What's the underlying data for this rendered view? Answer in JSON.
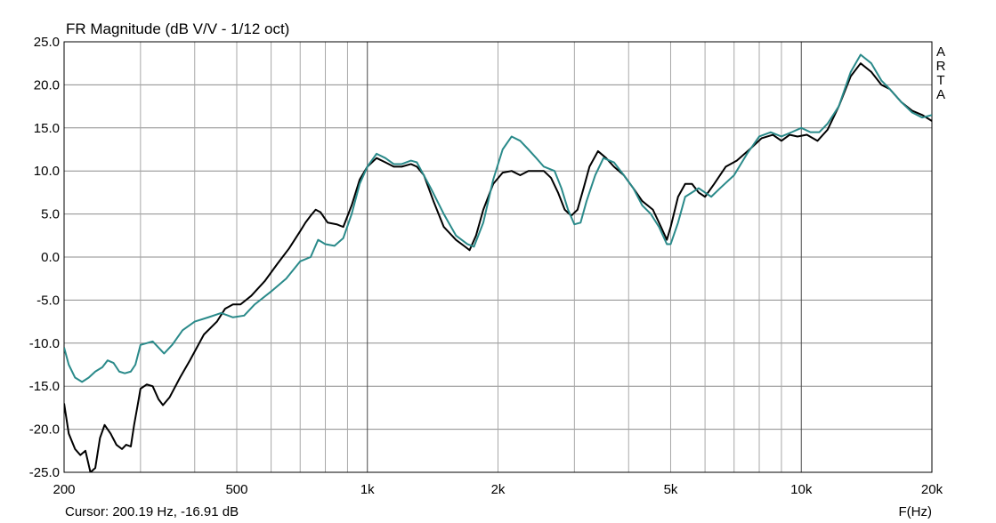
{
  "chart_data": {
    "type": "line",
    "title": "FR Magnitude (dB V/V - 1/12 oct)",
    "xlabel": "F(Hz)",
    "ylabel": "",
    "xscale": "log",
    "xlim": [
      200,
      20000
    ],
    "ylim": [
      -25,
      25
    ],
    "grid": true,
    "x_ticks": [
      {
        "value": 200,
        "label": "200"
      },
      {
        "value": 500,
        "label": "500"
      },
      {
        "value": 1000,
        "label": "1k"
      },
      {
        "value": 2000,
        "label": "2k"
      },
      {
        "value": 5000,
        "label": "5k"
      },
      {
        "value": 10000,
        "label": "10k"
      },
      {
        "value": 20000,
        "label": "20k"
      }
    ],
    "y_ticks": [
      "25.0",
      "20.0",
      "15.0",
      "10.0",
      "5.0",
      "0.0",
      "-5.0",
      "-10.0",
      "-15.0",
      "-20.0",
      "-25.0"
    ],
    "brand_letters": [
      "A",
      "R",
      "T",
      "A"
    ],
    "cursor_text": "Cursor: 200.19 Hz, -16.91 dB",
    "series": [
      {
        "color": "#000000",
        "points": [
          [
            200,
            -17
          ],
          [
            205,
            -20.5
          ],
          [
            212,
            -22.3
          ],
          [
            218,
            -23
          ],
          [
            224,
            -22.5
          ],
          [
            230,
            -25
          ],
          [
            236,
            -24.5
          ],
          [
            242,
            -21
          ],
          [
            248,
            -19.5
          ],
          [
            256,
            -20.5
          ],
          [
            264,
            -21.8
          ],
          [
            272,
            -22.3
          ],
          [
            278,
            -21.8
          ],
          [
            285,
            -22
          ],
          [
            290,
            -19.5
          ],
          [
            296,
            -17
          ],
          [
            300,
            -15.3
          ],
          [
            310,
            -14.8
          ],
          [
            320,
            -15
          ],
          [
            330,
            -16.5
          ],
          [
            338,
            -17.2
          ],
          [
            350,
            -16.3
          ],
          [
            370,
            -14
          ],
          [
            390,
            -12
          ],
          [
            420,
            -9
          ],
          [
            450,
            -7.5
          ],
          [
            470,
            -6
          ],
          [
            490,
            -5.5
          ],
          [
            510,
            -5.5
          ],
          [
            540,
            -4.5
          ],
          [
            580,
            -2.8
          ],
          [
            620,
            -0.8
          ],
          [
            660,
            1
          ],
          [
            700,
            3
          ],
          [
            720,
            4
          ],
          [
            740,
            4.8
          ],
          [
            760,
            5.5
          ],
          [
            780,
            5.2
          ],
          [
            810,
            4
          ],
          [
            850,
            3.8
          ],
          [
            880,
            3.5
          ],
          [
            920,
            6
          ],
          [
            960,
            9
          ],
          [
            1000,
            10.5
          ],
          [
            1050,
            11.5
          ],
          [
            1100,
            11
          ],
          [
            1150,
            10.5
          ],
          [
            1200,
            10.5
          ],
          [
            1260,
            10.8
          ],
          [
            1300,
            10.5
          ],
          [
            1350,
            9.5
          ],
          [
            1420,
            6.5
          ],
          [
            1500,
            3.5
          ],
          [
            1600,
            2
          ],
          [
            1680,
            1.2
          ],
          [
            1720,
            0.8
          ],
          [
            1780,
            2.5
          ],
          [
            1850,
            5.5
          ],
          [
            1950,
            8.5
          ],
          [
            2050,
            9.8
          ],
          [
            2150,
            10
          ],
          [
            2250,
            9.5
          ],
          [
            2350,
            10
          ],
          [
            2450,
            10
          ],
          [
            2550,
            10
          ],
          [
            2650,
            9.2
          ],
          [
            2750,
            7.5
          ],
          [
            2850,
            5.5
          ],
          [
            2950,
            4.8
          ],
          [
            3050,
            5.5
          ],
          [
            3150,
            8
          ],
          [
            3250,
            10.5
          ],
          [
            3400,
            12.3
          ],
          [
            3550,
            11.5
          ],
          [
            3700,
            10.5
          ],
          [
            3900,
            9.5
          ],
          [
            4100,
            8
          ],
          [
            4300,
            6.5
          ],
          [
            4550,
            5.5
          ],
          [
            4750,
            3.5
          ],
          [
            4900,
            2
          ],
          [
            5000,
            3.5
          ],
          [
            5200,
            7
          ],
          [
            5400,
            8.5
          ],
          [
            5600,
            8.5
          ],
          [
            5800,
            7.5
          ],
          [
            6000,
            7
          ],
          [
            6300,
            8.5
          ],
          [
            6700,
            10.5
          ],
          [
            7100,
            11.2
          ],
          [
            7600,
            12.5
          ],
          [
            8100,
            13.8
          ],
          [
            8600,
            14.2
          ],
          [
            9000,
            13.5
          ],
          [
            9400,
            14.2
          ],
          [
            9800,
            14
          ],
          [
            10300,
            14.2
          ],
          [
            10900,
            13.5
          ],
          [
            11500,
            14.8
          ],
          [
            12200,
            17.5
          ],
          [
            13000,
            21
          ],
          [
            13700,
            22.5
          ],
          [
            14500,
            21.5
          ],
          [
            15300,
            20
          ],
          [
            16000,
            19.5
          ],
          [
            17000,
            18
          ],
          [
            18000,
            17
          ],
          [
            19000,
            16.5
          ],
          [
            20000,
            15.8
          ]
        ]
      },
      {
        "color": "#2a8a8a",
        "points": [
          [
            200,
            -10.5
          ],
          [
            205,
            -12.5
          ],
          [
            212,
            -14
          ],
          [
            220,
            -14.5
          ],
          [
            228,
            -14
          ],
          [
            236,
            -13.3
          ],
          [
            245,
            -12.8
          ],
          [
            252,
            -12
          ],
          [
            260,
            -12.3
          ],
          [
            268,
            -13.3
          ],
          [
            276,
            -13.5
          ],
          [
            285,
            -13.3
          ],
          [
            292,
            -12.5
          ],
          [
            300,
            -10.2
          ],
          [
            310,
            -10
          ],
          [
            320,
            -9.8
          ],
          [
            330,
            -10.5
          ],
          [
            340,
            -11.2
          ],
          [
            355,
            -10.2
          ],
          [
            375,
            -8.5
          ],
          [
            400,
            -7.5
          ],
          [
            430,
            -7
          ],
          [
            460,
            -6.5
          ],
          [
            490,
            -7
          ],
          [
            520,
            -6.8
          ],
          [
            550,
            -5.5
          ],
          [
            600,
            -4
          ],
          [
            650,
            -2.5
          ],
          [
            700,
            -0.5
          ],
          [
            740,
            0
          ],
          [
            770,
            2
          ],
          [
            800,
            1.5
          ],
          [
            840,
            1.3
          ],
          [
            880,
            2.2
          ],
          [
            920,
            5
          ],
          [
            960,
            8.5
          ],
          [
            1000,
            10.5
          ],
          [
            1050,
            12
          ],
          [
            1100,
            11.5
          ],
          [
            1150,
            10.8
          ],
          [
            1200,
            10.8
          ],
          [
            1260,
            11.2
          ],
          [
            1300,
            11
          ],
          [
            1400,
            8
          ],
          [
            1500,
            5
          ],
          [
            1600,
            2.5
          ],
          [
            1700,
            1.5
          ],
          [
            1760,
            1.2
          ],
          [
            1850,
            4
          ],
          [
            1950,
            9
          ],
          [
            2050,
            12.5
          ],
          [
            2150,
            14
          ],
          [
            2250,
            13.5
          ],
          [
            2350,
            12.5
          ],
          [
            2450,
            11.5
          ],
          [
            2550,
            10.5
          ],
          [
            2700,
            10
          ],
          [
            2800,
            8
          ],
          [
            2900,
            5.5
          ],
          [
            3000,
            3.8
          ],
          [
            3100,
            4
          ],
          [
            3200,
            6.5
          ],
          [
            3350,
            9.5
          ],
          [
            3500,
            11.5
          ],
          [
            3700,
            11
          ],
          [
            3900,
            9.5
          ],
          [
            4100,
            8
          ],
          [
            4300,
            6
          ],
          [
            4500,
            5
          ],
          [
            4700,
            3.5
          ],
          [
            4900,
            1.5
          ],
          [
            5000,
            1.5
          ],
          [
            5200,
            4
          ],
          [
            5400,
            7
          ],
          [
            5600,
            7.5
          ],
          [
            5800,
            8
          ],
          [
            6000,
            7.5
          ],
          [
            6200,
            7
          ],
          [
            6500,
            8
          ],
          [
            7000,
            9.5
          ],
          [
            7500,
            12
          ],
          [
            8000,
            14
          ],
          [
            8500,
            14.5
          ],
          [
            9000,
            14
          ],
          [
            9500,
            14.5
          ],
          [
            10000,
            15
          ],
          [
            10500,
            14.5
          ],
          [
            11000,
            14.5
          ],
          [
            11500,
            15.5
          ],
          [
            12200,
            17.5
          ],
          [
            13000,
            21.5
          ],
          [
            13700,
            23.5
          ],
          [
            14500,
            22.5
          ],
          [
            15300,
            20.5
          ],
          [
            16000,
            19.5
          ],
          [
            17000,
            18
          ],
          [
            18000,
            16.8
          ],
          [
            19000,
            16.2
          ],
          [
            20000,
            16.5
          ]
        ]
      }
    ]
  }
}
